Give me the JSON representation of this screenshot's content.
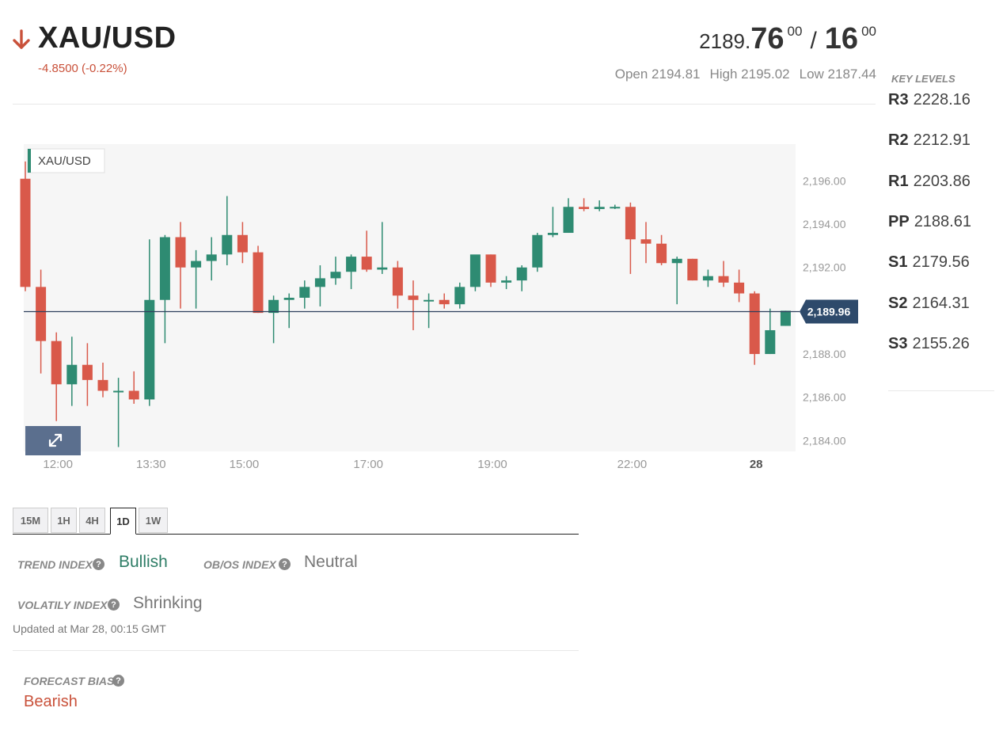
{
  "header": {
    "symbol": "XAU/USD",
    "change": "-4.8500 (-0.22%)",
    "direction": "down",
    "bid": {
      "prefix": "2189.",
      "big": "76",
      "sup": "00"
    },
    "ask": {
      "big": "16",
      "sup": "00"
    },
    "slash": "/",
    "open": "Open 2194.81",
    "high": "High 2195.02",
    "low": "Low 2187.44"
  },
  "key_levels": {
    "title": "KEY LEVELS",
    "items": [
      {
        "name": "R3",
        "value": "2228.16"
      },
      {
        "name": "R2",
        "value": "2212.91"
      },
      {
        "name": "R1",
        "value": "2203.86"
      },
      {
        "name": "PP",
        "value": "2188.61"
      },
      {
        "name": "S1",
        "value": "2179.56"
      },
      {
        "name": "S2",
        "value": "2164.31"
      },
      {
        "name": "S3",
        "value": "2155.26"
      }
    ]
  },
  "chart_data": {
    "type": "candlestick",
    "legend": "XAU/USD",
    "current_price_label": "2,189.96",
    "current_price": 2189.96,
    "ylim": [
      2183.5,
      2197.7
    ],
    "y_ticks": [
      {
        "value": 2196,
        "label": "2,196.00"
      },
      {
        "value": 2194,
        "label": "2,194.00"
      },
      {
        "value": 2192,
        "label": "2,192.00"
      },
      {
        "value": 2190,
        "label": "2,190.00"
      },
      {
        "value": 2188,
        "label": "2,188.00"
      },
      {
        "value": 2186,
        "label": "2,186.00"
      },
      {
        "value": 2184,
        "label": "2,184.00"
      }
    ],
    "x_ticks": [
      {
        "index": 2,
        "label": "12:00",
        "bold": false
      },
      {
        "index": 8,
        "label": "13:30",
        "bold": false
      },
      {
        "index": 14,
        "label": "15:00",
        "bold": false
      },
      {
        "index": 22,
        "label": "17:00",
        "bold": false
      },
      {
        "index": 30,
        "label": "19:00",
        "bold": false
      },
      {
        "index": 39,
        "label": "22:00",
        "bold": false
      },
      {
        "index": 47,
        "label": "28",
        "bold": true
      }
    ],
    "colors": {
      "up": "#2e8b72",
      "down": "#d9594a",
      "price_line": "#2e3f5c",
      "price_tag": "#2e4a6b"
    },
    "candles": [
      {
        "o": 2196.1,
        "h": 2196.9,
        "l": 2190.9,
        "c": 2191.1
      },
      {
        "o": 2191.1,
        "h": 2191.9,
        "l": 2187.1,
        "c": 2188.6
      },
      {
        "o": 2188.6,
        "h": 2189.0,
        "l": 2184.9,
        "c": 2186.6
      },
      {
        "o": 2186.6,
        "h": 2188.8,
        "l": 2185.6,
        "c": 2187.5
      },
      {
        "o": 2187.5,
        "h": 2188.5,
        "l": 2185.6,
        "c": 2186.8
      },
      {
        "o": 2186.8,
        "h": 2187.6,
        "l": 2186.0,
        "c": 2186.3
      },
      {
        "o": 2186.3,
        "h": 2186.9,
        "l": 2183.7,
        "c": 2186.3
      },
      {
        "o": 2186.3,
        "h": 2187.2,
        "l": 2185.7,
        "c": 2185.9
      },
      {
        "o": 2185.9,
        "h": 2193.3,
        "l": 2185.6,
        "c": 2190.5
      },
      {
        "o": 2190.5,
        "h": 2193.5,
        "l": 2188.5,
        "c": 2193.4
      },
      {
        "o": 2193.4,
        "h": 2194.1,
        "l": 2190.1,
        "c": 2192.0
      },
      {
        "o": 2192.0,
        "h": 2192.8,
        "l": 2190.1,
        "c": 2192.3
      },
      {
        "o": 2192.3,
        "h": 2193.4,
        "l": 2191.4,
        "c": 2192.6
      },
      {
        "o": 2192.6,
        "h": 2195.3,
        "l": 2192.1,
        "c": 2193.5
      },
      {
        "o": 2193.5,
        "h": 2194.1,
        "l": 2192.2,
        "c": 2192.7
      },
      {
        "o": 2192.7,
        "h": 2193.0,
        "l": 2189.9,
        "c": 2189.9
      },
      {
        "o": 2189.9,
        "h": 2190.7,
        "l": 2188.5,
        "c": 2190.5
      },
      {
        "o": 2190.5,
        "h": 2190.8,
        "l": 2189.2,
        "c": 2190.6
      },
      {
        "o": 2190.6,
        "h": 2191.4,
        "l": 2190.1,
        "c": 2191.1
      },
      {
        "o": 2191.1,
        "h": 2192.1,
        "l": 2190.2,
        "c": 2191.5
      },
      {
        "o": 2191.5,
        "h": 2192.5,
        "l": 2191.2,
        "c": 2191.8
      },
      {
        "o": 2191.8,
        "h": 2192.6,
        "l": 2191.0,
        "c": 2192.5
      },
      {
        "o": 2192.5,
        "h": 2193.7,
        "l": 2191.8,
        "c": 2191.9
      },
      {
        "o": 2191.9,
        "h": 2194.1,
        "l": 2191.7,
        "c": 2192.0
      },
      {
        "o": 2192.0,
        "h": 2192.3,
        "l": 2190.1,
        "c": 2190.7
      },
      {
        "o": 2190.7,
        "h": 2191.4,
        "l": 2189.1,
        "c": 2190.5
      },
      {
        "o": 2190.5,
        "h": 2190.8,
        "l": 2189.2,
        "c": 2190.5
      },
      {
        "o": 2190.5,
        "h": 2190.8,
        "l": 2190.1,
        "c": 2190.3
      },
      {
        "o": 2190.3,
        "h": 2191.3,
        "l": 2190.1,
        "c": 2191.1
      },
      {
        "o": 2191.1,
        "h": 2192.5,
        "l": 2190.9,
        "c": 2192.6
      },
      {
        "o": 2192.6,
        "h": 2192.6,
        "l": 2191.1,
        "c": 2191.3
      },
      {
        "o": 2191.3,
        "h": 2191.6,
        "l": 2191.0,
        "c": 2191.4
      },
      {
        "o": 2191.4,
        "h": 2192.1,
        "l": 2190.9,
        "c": 2192.0
      },
      {
        "o": 2192.0,
        "h": 2193.6,
        "l": 2191.8,
        "c": 2193.5
      },
      {
        "o": 2193.5,
        "h": 2194.8,
        "l": 2193.4,
        "c": 2193.6
      },
      {
        "o": 2193.6,
        "h": 2195.2,
        "l": 2193.6,
        "c": 2194.8
      },
      {
        "o": 2194.8,
        "h": 2195.2,
        "l": 2194.6,
        "c": 2194.7
      },
      {
        "o": 2194.7,
        "h": 2195.1,
        "l": 2194.6,
        "c": 2194.8
      },
      {
        "o": 2194.8,
        "h": 2194.9,
        "l": 2194.7,
        "c": 2194.8
      },
      {
        "o": 2194.8,
        "h": 2195.0,
        "l": 2191.7,
        "c": 2193.3
      },
      {
        "o": 2193.3,
        "h": 2194.1,
        "l": 2192.2,
        "c": 2193.1
      },
      {
        "o": 2193.1,
        "h": 2193.5,
        "l": 2192.1,
        "c": 2192.2
      },
      {
        "o": 2192.2,
        "h": 2192.5,
        "l": 2190.3,
        "c": 2192.4
      },
      {
        "o": 2192.4,
        "h": 2192.4,
        "l": 2191.4,
        "c": 2191.4
      },
      {
        "o": 2191.4,
        "h": 2191.9,
        "l": 2191.1,
        "c": 2191.6
      },
      {
        "o": 2191.6,
        "h": 2192.3,
        "l": 2191.1,
        "c": 2191.3
      },
      {
        "o": 2191.3,
        "h": 2191.9,
        "l": 2190.4,
        "c": 2190.8
      },
      {
        "o": 2190.8,
        "h": 2190.9,
        "l": 2187.5,
        "c": 2188.0
      },
      {
        "o": 2188.0,
        "h": 2190.1,
        "l": 2188.0,
        "c": 2189.1
      },
      {
        "o": 2189.3,
        "h": 2190.0,
        "l": 2189.3,
        "c": 2190.0
      }
    ]
  },
  "timeframes": {
    "items": [
      "15M",
      "1H",
      "4H",
      "1D",
      "1W"
    ],
    "active": "1D"
  },
  "indexes": {
    "trend_label": "TREND INDEX",
    "trend_value": "Bullish",
    "obos_label": "OB/OS INDEX",
    "obos_value": "Neutral",
    "volatility_label": "VOLATILY INDEX",
    "volatility_value": "Shrinking",
    "help_glyph": "?",
    "updated": "Updated at Mar 28, 00:15 GMT"
  },
  "forecast": {
    "label": "FORECAST BIAS",
    "value": "Bearish"
  }
}
